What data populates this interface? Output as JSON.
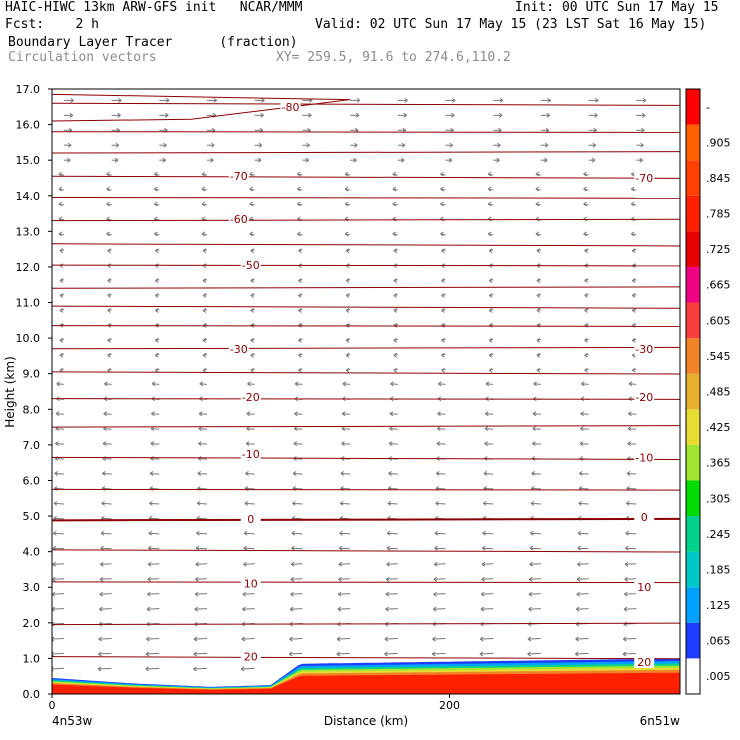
{
  "header": {
    "model_line": "HAIC-HIWC 13km ARW-GFS init   NCAR/MMM",
    "init_line": "Init: 00 UTC Sun 17 May 15",
    "fcst_line": "Fcst:    2 h",
    "valid_line": "Valid: 02 UTC Sun 17 May 15 (23 LST Sat 16 May 15)",
    "field_line": "Boundary Layer Tracer      (fraction)",
    "vector_line": "Circulation vectors",
    "xy_line": "XY= 259.5, 91.6 to 274.6,110.2"
  },
  "chart_data": {
    "type": "cross-section",
    "title": "Boundary Layer Tracer",
    "units": "fraction",
    "xlabel": "Distance (km)",
    "ylabel": "Height (km)",
    "xlim": [
      0,
      316
    ],
    "ylim": [
      0,
      17
    ],
    "x_tick_values": [
      0,
      200
    ],
    "x_tick_labels": [
      "0",
      "200"
    ],
    "x_end_labels": [
      "4n53w",
      "6n51w"
    ],
    "y_tick_labels": [
      "0.0",
      "1.0",
      "2.0",
      "3.0",
      "4.0",
      "5.0",
      "6.0",
      "7.0",
      "8.0",
      "9.0",
      "10.0",
      "11.0",
      "12.0",
      "13.0",
      "14.0",
      "15.0",
      "16.0",
      "17.0"
    ],
    "colorbar": {
      "labels": [
        ".005",
        ".065",
        ".125",
        ".185",
        ".245",
        ".305",
        ".365",
        ".425",
        ".485",
        ".545",
        ".605",
        ".665",
        ".725",
        ".785",
        ".845",
        ".905",
        "-"
      ],
      "colors": [
        "#ffffff",
        "#1e3cff",
        "#00a0ff",
        "#00c8c8",
        "#00d28c",
        "#00dc00",
        "#a0e632",
        "#e6dc32",
        "#e6af2d",
        "#f08228",
        "#fa3c3c",
        "#f00082",
        "#e60000",
        "#ff2000",
        "#ff4000",
        "#ff6000",
        "#ff0000"
      ]
    },
    "isotherms": {
      "color": "#8b0000",
      "levels_c": [
        20,
        10,
        0,
        -10,
        -20,
        -30,
        -50,
        -60,
        -70,
        -80
      ],
      "labels": [
        "20",
        "10",
        "0",
        "-10",
        "-20",
        "-30",
        "-50",
        "-60",
        "-70",
        "-80"
      ]
    },
    "tracer_layer": {
      "x_km": [
        0,
        40,
        80,
        110,
        125,
        316
      ],
      "top_km": [
        0.45,
        0.3,
        0.2,
        0.25,
        0.85,
        1.0
      ]
    }
  }
}
